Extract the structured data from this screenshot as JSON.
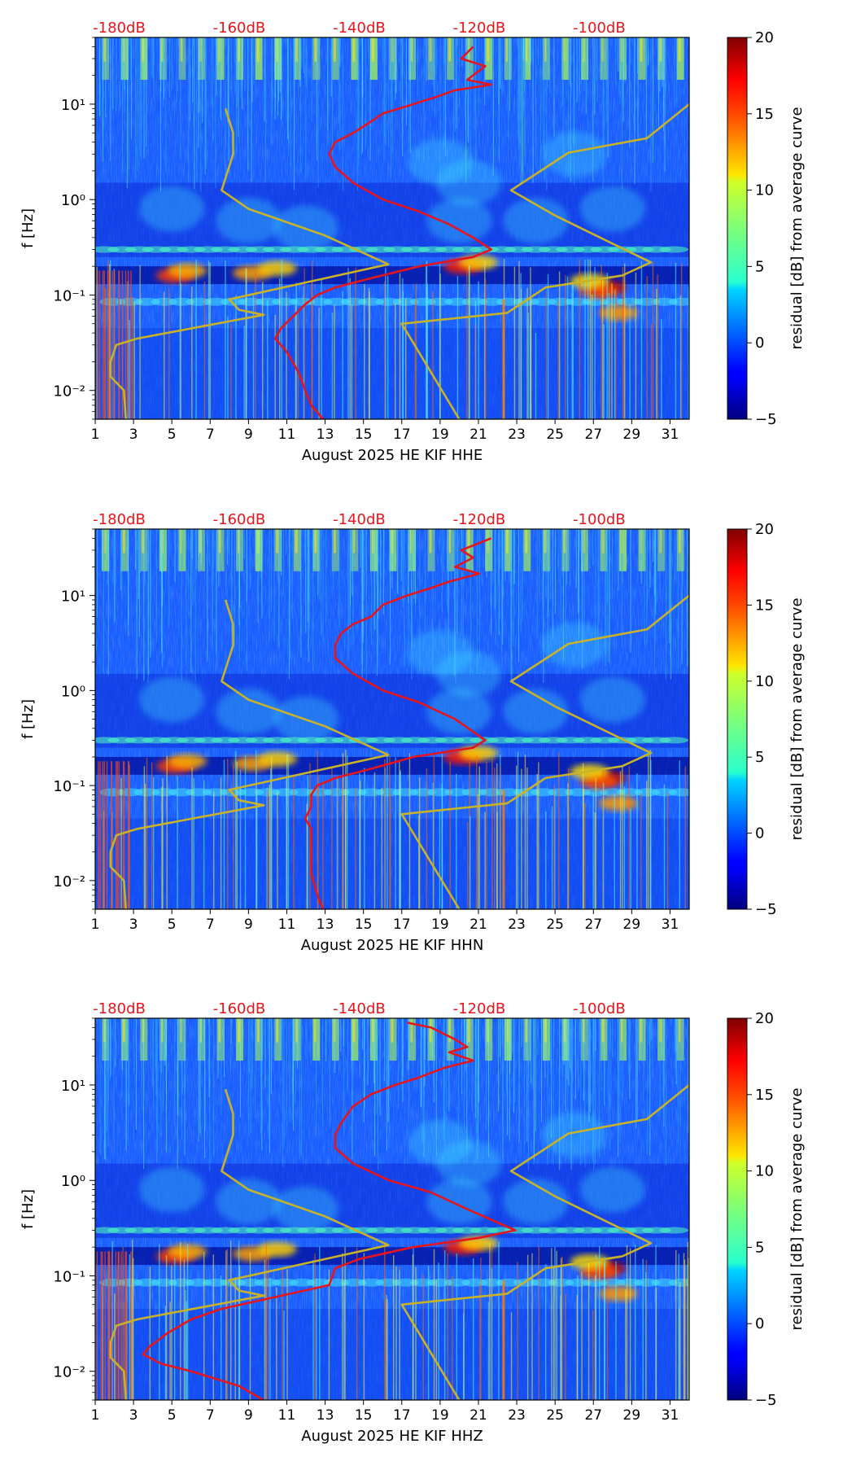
{
  "chart_data": [
    {
      "type": "heatmap",
      "xlabel": "August 2025 HE KIF  HHE",
      "ylabel": "f [Hz]",
      "x_ticks": [
        "1",
        "3",
        "5",
        "7",
        "9",
        "11",
        "13",
        "15",
        "17",
        "19",
        "21",
        "23",
        "25",
        "27",
        "29",
        "31"
      ],
      "xlim": [
        1,
        32
      ],
      "y_ticks": [
        "10⁻²",
        "10⁻¹",
        "10⁰",
        "10¹"
      ],
      "ylim": [
        0.005,
        50
      ],
      "y_scale": "log",
      "top_ticks": [
        "-180dB",
        "-160dB",
        "-140dB",
        "-120dB",
        "-100dB"
      ],
      "top_range_db": [
        -184,
        -85
      ],
      "colorbar": {
        "label": "residual [dB] from average curve",
        "ticks": [
          "−5",
          "0",
          "5",
          "10",
          "15",
          "20"
        ],
        "range": [
          -5,
          20
        ],
        "colormap": "jet"
      },
      "series": [
        {
          "color": "#e8141b",
          "axis": "top",
          "points": [
            [
              -121,
              40
            ],
            [
              -123,
              30
            ],
            [
              -119,
              25
            ],
            [
              -122,
              18
            ],
            [
              -118,
              16
            ],
            [
              -124,
              14
            ],
            [
              -127,
              12
            ],
            [
              -131,
              10
            ],
            [
              -136,
              8
            ],
            [
              -139,
              6
            ],
            [
              -141,
              5
            ],
            [
              -144,
              4
            ],
            [
              -145,
              3
            ],
            [
              -144,
              2.2
            ],
            [
              -141,
              1.5
            ],
            [
              -136,
              1
            ],
            [
              -130,
              0.75
            ],
            [
              -125,
              0.55
            ],
            [
              -121,
              0.4
            ],
            [
              -118,
              0.3
            ],
            [
              -121,
              0.25
            ],
            [
              -130,
              0.2
            ],
            [
              -138,
              0.15
            ],
            [
              -144,
              0.12
            ],
            [
              -147,
              0.1
            ],
            [
              -149,
              0.08
            ],
            [
              -151,
              0.06
            ],
            [
              -153,
              0.045
            ],
            [
              -154,
              0.035
            ],
            [
              -152,
              0.025
            ],
            [
              -150,
              0.015
            ],
            [
              -149,
              0.01
            ],
            [
              -148,
              0.007
            ],
            [
              -146,
              0.005
            ]
          ]
        },
        {
          "color": "#c8b22a",
          "axis": "bottom",
          "points": [
            [
              7.8,
              9
            ],
            [
              8.2,
              5
            ],
            [
              8.2,
              3
            ],
            [
              7.6,
              1.25
            ],
            [
              9,
              0.8
            ],
            [
              13,
              0.42
            ],
            [
              16.3,
              0.21
            ],
            [
              8,
              0.09
            ],
            [
              8.5,
              0.07
            ],
            [
              9.8,
              0.062
            ],
            [
              3.2,
              0.035
            ],
            [
              2.1,
              0.03
            ],
            [
              1.8,
              0.02
            ],
            [
              1.8,
              0.014
            ],
            [
              2.5,
              0.01
            ],
            [
              2.6,
              0.005
            ]
          ]
        },
        {
          "color": "#c8b22a",
          "axis": "bottom",
          "points": [
            [
              32,
              10
            ],
            [
              29.8,
              4.4
            ],
            [
              25.7,
              3.1
            ],
            [
              22.7,
              1.25
            ],
            [
              25,
              0.68
            ],
            [
              30,
              0.22
            ],
            [
              28.5,
              0.16
            ],
            [
              24.5,
              0.12
            ],
            [
              22.5,
              0.065
            ],
            [
              17,
              0.05
            ],
            [
              20,
              0.005
            ]
          ]
        }
      ]
    },
    {
      "type": "heatmap",
      "xlabel": "August 2025 HE KIF  HHN",
      "ylabel": "f [Hz]",
      "x_ticks": [
        "1",
        "3",
        "5",
        "7",
        "9",
        "11",
        "13",
        "15",
        "17",
        "19",
        "21",
        "23",
        "25",
        "27",
        "29",
        "31"
      ],
      "xlim": [
        1,
        32
      ],
      "y_ticks": [
        "10⁻²",
        "10⁻¹",
        "10⁰",
        "10¹"
      ],
      "ylim": [
        0.005,
        50
      ],
      "y_scale": "log",
      "top_ticks": [
        "-180dB",
        "-160dB",
        "-140dB",
        "-120dB",
        "-100dB"
      ],
      "top_range_db": [
        -184,
        -85
      ],
      "colorbar": {
        "label": "residual [dB] from average curve",
        "ticks": [
          "−5",
          "0",
          "5",
          "10",
          "15",
          "20"
        ],
        "range": [
          -5,
          20
        ],
        "colormap": "jet"
      },
      "series": [
        {
          "color": "#e8141b",
          "axis": "top",
          "points": [
            [
              -118,
              40
            ],
            [
              -123,
              30
            ],
            [
              -121,
              25
            ],
            [
              -124,
              20
            ],
            [
              -120,
              17
            ],
            [
              -125,
              14
            ],
            [
              -128,
              12
            ],
            [
              -132,
              10
            ],
            [
              -136,
              8
            ],
            [
              -138,
              6
            ],
            [
              -141,
              5
            ],
            [
              -143,
              4
            ],
            [
              -144,
              3
            ],
            [
              -144,
              2.2
            ],
            [
              -141,
              1.5
            ],
            [
              -136,
              1
            ],
            [
              -130,
              0.75
            ],
            [
              -124,
              0.5
            ],
            [
              -119,
              0.3
            ],
            [
              -121,
              0.25
            ],
            [
              -131,
              0.2
            ],
            [
              -138,
              0.15
            ],
            [
              -144,
              0.12
            ],
            [
              -147,
              0.1
            ],
            [
              -148,
              0.08
            ],
            [
              -148,
              0.06
            ],
            [
              -149,
              0.045
            ],
            [
              -148,
              0.035
            ],
            [
              -148,
              0.02
            ],
            [
              -148,
              0.012
            ],
            [
              -147,
              0.007
            ],
            [
              -146,
              0.005
            ]
          ]
        },
        {
          "color": "#c8b22a",
          "axis": "bottom",
          "points": [
            [
              7.8,
              9
            ],
            [
              8.2,
              5
            ],
            [
              8.2,
              3
            ],
            [
              7.6,
              1.25
            ],
            [
              9,
              0.8
            ],
            [
              13,
              0.42
            ],
            [
              16.3,
              0.21
            ],
            [
              8,
              0.09
            ],
            [
              8.5,
              0.07
            ],
            [
              9.8,
              0.062
            ],
            [
              3.2,
              0.035
            ],
            [
              2.1,
              0.03
            ],
            [
              1.8,
              0.02
            ],
            [
              1.8,
              0.014
            ],
            [
              2.5,
              0.01
            ],
            [
              2.6,
              0.005
            ]
          ]
        },
        {
          "color": "#c8b22a",
          "axis": "bottom",
          "points": [
            [
              32,
              10
            ],
            [
              29.8,
              4.4
            ],
            [
              25.7,
              3.1
            ],
            [
              22.7,
              1.25
            ],
            [
              25,
              0.68
            ],
            [
              30,
              0.22
            ],
            [
              28.5,
              0.16
            ],
            [
              24.5,
              0.12
            ],
            [
              22.5,
              0.065
            ],
            [
              17,
              0.05
            ],
            [
              20,
              0.005
            ]
          ]
        }
      ]
    },
    {
      "type": "heatmap",
      "xlabel": "August 2025 HE KIF  HHZ",
      "ylabel": "f [Hz]",
      "x_ticks": [
        "1",
        "3",
        "5",
        "7",
        "9",
        "11",
        "13",
        "15",
        "17",
        "19",
        "21",
        "23",
        "25",
        "27",
        "29",
        "31"
      ],
      "xlim": [
        1,
        32
      ],
      "y_ticks": [
        "10⁻²",
        "10⁻¹",
        "10⁰",
        "10¹"
      ],
      "ylim": [
        0.005,
        50
      ],
      "y_scale": "log",
      "top_ticks": [
        "-180dB",
        "-160dB",
        "-140dB",
        "-120dB",
        "-100dB"
      ],
      "top_range_db": [
        -184,
        -85
      ],
      "colorbar": {
        "label": "residual [dB] from average curve",
        "ticks": [
          "−5",
          "0",
          "5",
          "10",
          "15",
          "20"
        ],
        "range": [
          -5,
          20
        ],
        "colormap": "jet"
      },
      "series": [
        {
          "color": "#e8141b",
          "axis": "top",
          "points": [
            [
              -132,
              45
            ],
            [
              -128,
              40
            ],
            [
              -124,
              30
            ],
            [
              -122,
              25
            ],
            [
              -125,
              22
            ],
            [
              -121,
              18
            ],
            [
              -126,
              15
            ],
            [
              -130,
              12
            ],
            [
              -134,
              10
            ],
            [
              -138,
              8
            ],
            [
              -141,
              6
            ],
            [
              -143,
              4
            ],
            [
              -144,
              3
            ],
            [
              -144,
              2.2
            ],
            [
              -141,
              1.5
            ],
            [
              -135,
              1
            ],
            [
              -128,
              0.75
            ],
            [
              -122,
              0.5
            ],
            [
              -114,
              0.3
            ],
            [
              -120,
              0.25
            ],
            [
              -131,
              0.2
            ],
            [
              -140,
              0.15
            ],
            [
              -144,
              0.12
            ],
            [
              -145,
              0.08
            ],
            [
              -154,
              0.06
            ],
            [
              -163,
              0.045
            ],
            [
              -168,
              0.035
            ],
            [
              -172,
              0.025
            ],
            [
              -175,
              0.018
            ],
            [
              -176,
              0.015
            ],
            [
              -173,
              0.012
            ],
            [
              -168,
              0.01
            ],
            [
              -160,
              0.007
            ],
            [
              -156,
              0.005
            ]
          ]
        },
        {
          "color": "#c8b22a",
          "axis": "bottom",
          "points": [
            [
              7.8,
              9
            ],
            [
              8.2,
              5
            ],
            [
              8.2,
              3
            ],
            [
              7.6,
              1.25
            ],
            [
              9,
              0.8
            ],
            [
              13,
              0.42
            ],
            [
              16.3,
              0.21
            ],
            [
              8,
              0.09
            ],
            [
              8.5,
              0.07
            ],
            [
              9.8,
              0.062
            ],
            [
              3.2,
              0.035
            ],
            [
              2.1,
              0.03
            ],
            [
              1.8,
              0.02
            ],
            [
              1.8,
              0.014
            ],
            [
              2.5,
              0.01
            ],
            [
              2.6,
              0.005
            ]
          ]
        },
        {
          "color": "#c8b22a",
          "axis": "bottom",
          "points": [
            [
              32,
              10
            ],
            [
              29.8,
              4.4
            ],
            [
              25.7,
              3.1
            ],
            [
              22.7,
              1.25
            ],
            [
              25,
              0.68
            ],
            [
              30,
              0.22
            ],
            [
              28.5,
              0.16
            ],
            [
              24.5,
              0.12
            ],
            [
              22.5,
              0.065
            ],
            [
              17,
              0.05
            ],
            [
              20,
              0.005
            ]
          ]
        }
      ]
    }
  ]
}
